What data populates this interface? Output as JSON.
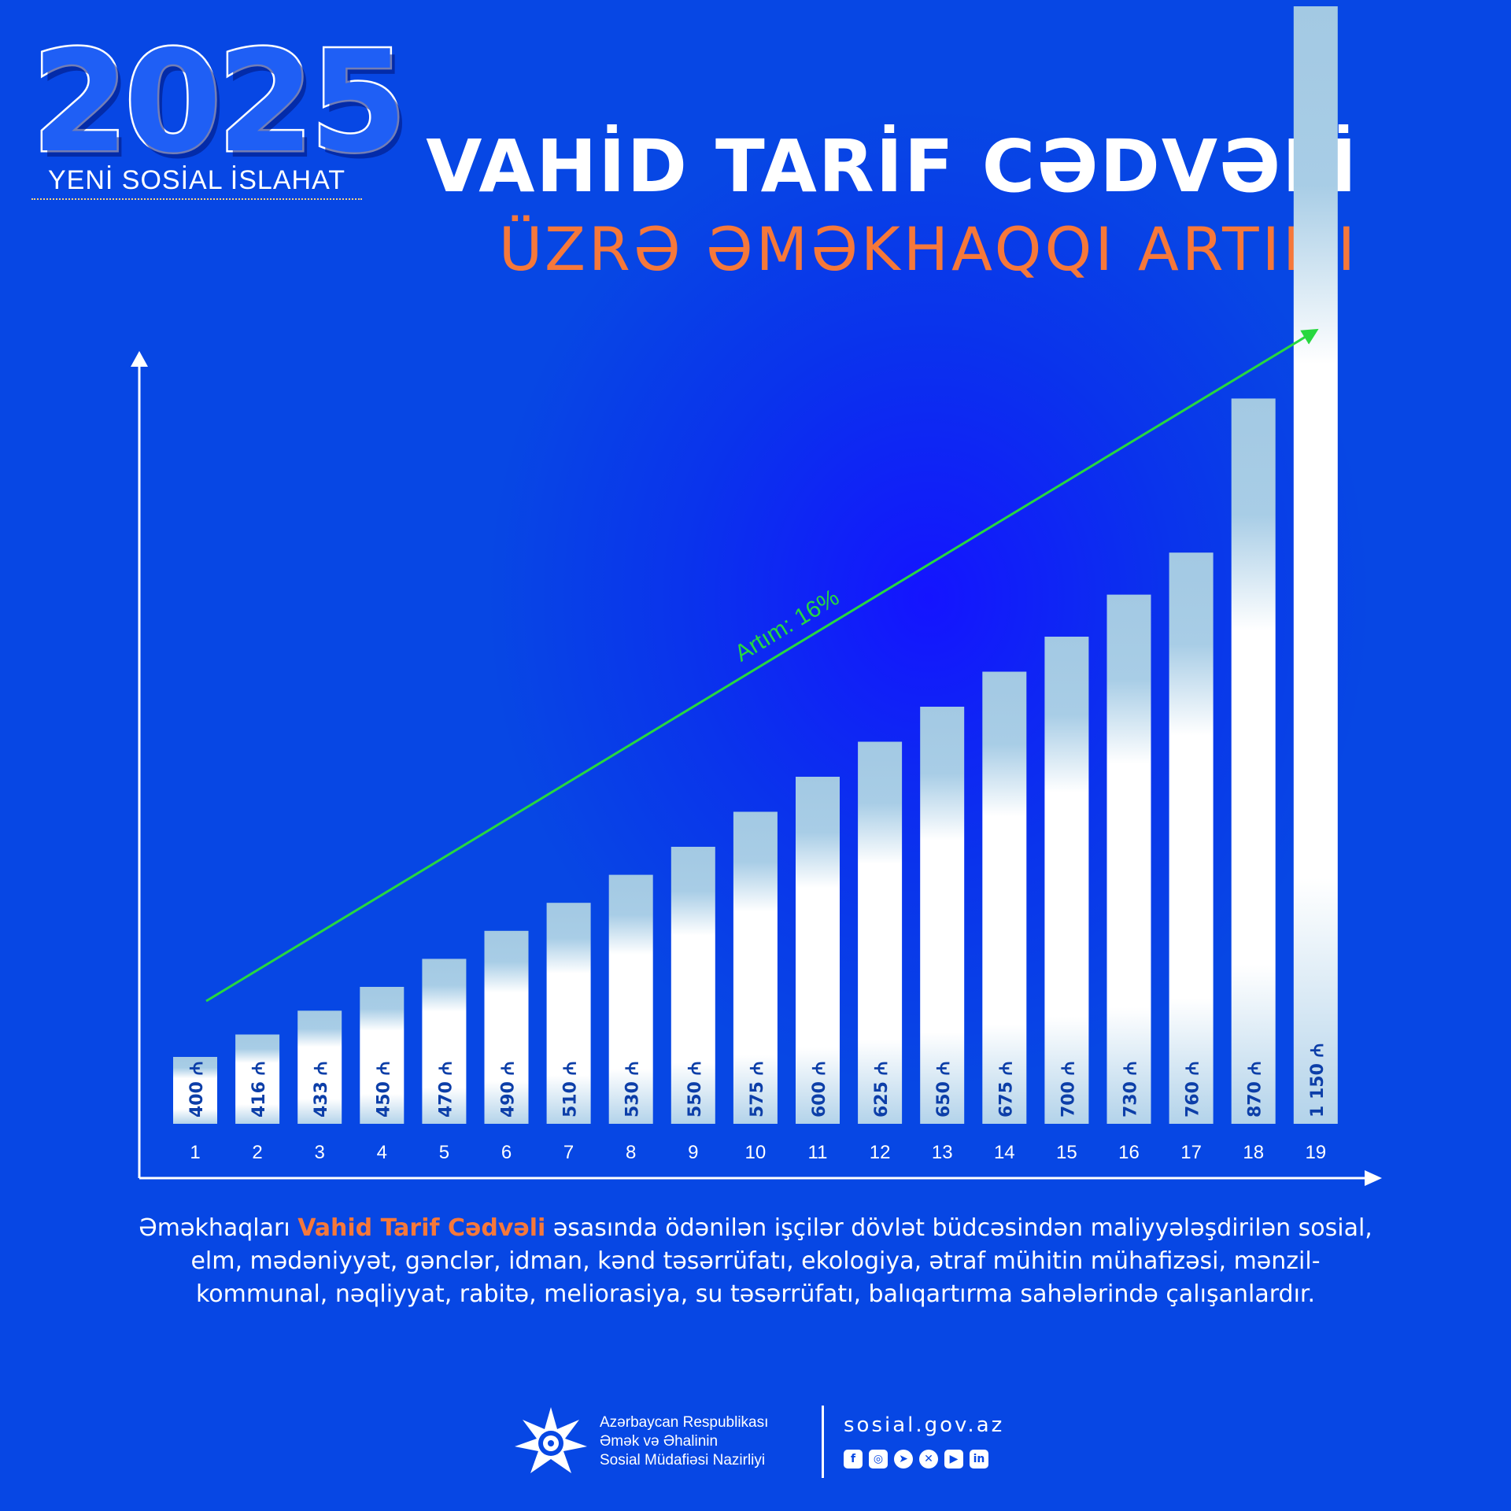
{
  "badge": {
    "year": "2025",
    "subtitle": "YENİ SOSİAL İSLAHAT"
  },
  "header": {
    "title": "VAHİD TARİF CƏDVƏLİ",
    "subtitle": "ÜZRƏ ƏMƏKHAQQI ARTIMI"
  },
  "chart_data": {
    "type": "bar",
    "categories": [
      "1",
      "2",
      "3",
      "4",
      "5",
      "6",
      "7",
      "8",
      "9",
      "10",
      "11",
      "12",
      "13",
      "14",
      "15",
      "16",
      "17",
      "18",
      "19"
    ],
    "values": [
      400,
      416,
      433,
      450,
      470,
      490,
      510,
      530,
      550,
      575,
      600,
      625,
      650,
      675,
      700,
      730,
      760,
      870,
      1150
    ],
    "value_labels": [
      "400 ₼",
      "416 ₼",
      "433 ₼",
      "450 ₼",
      "470 ₼",
      "490 ₼",
      "510 ₼",
      "530 ₼",
      "550 ₼",
      "575 ₼",
      "600 ₼",
      "625 ₼",
      "650 ₼",
      "675 ₼",
      "700 ₼",
      "730 ₼",
      "760 ₼",
      "870 ₼",
      "1 150 ₼"
    ],
    "trend_label": "Artım: 16%",
    "colors": {
      "bar_top": "#a3c9e3",
      "bar_mid": "#ffffff",
      "trend": "#27d83f",
      "label": "#0c3ea8",
      "axis": "#ffffff"
    }
  },
  "caption": {
    "before": "Əməkhaqları ",
    "highlight": "Vahid Tarif Cədvəli",
    "after": " əsasında ödənilən işçilər dövlət büdcəsindən maliyyələşdirilən sosial, elm, mədəniyyət, gənclər, idman, kənd  təsərrüfatı, ekologiya, ətraf mühitin mühafizəsi, mənzil-kommunal, nəqliyyat, rabitə, meliorasiya, su təsərrüfatı, balıqartırma sahələrində çalışanlardır."
  },
  "footer": {
    "ministry_lines": [
      "Azərbaycan Respublikası",
      "Əmək və Əhalinin",
      "Sosial Müdafiəsi Nazirliyi"
    ],
    "website": "sosial.gov.az",
    "social_icons": [
      "facebook-icon",
      "instagram-icon",
      "telegram-icon",
      "x-icon",
      "youtube-icon",
      "linkedin-icon"
    ]
  }
}
